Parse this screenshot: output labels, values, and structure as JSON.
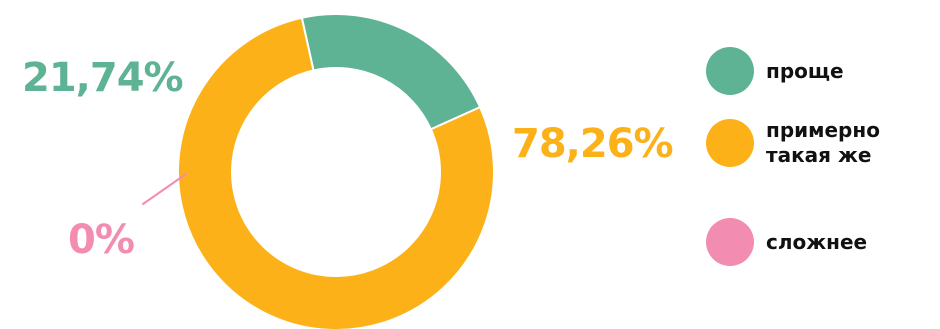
{
  "chart_data": {
    "type": "pie",
    "donut": true,
    "legend": "right",
    "categories": [
      "проще",
      "примерно такая же",
      "сложнее"
    ],
    "values": [
      21.74,
      78.26,
      0
    ],
    "labels": [
      "21,74%",
      "78,26%",
      "0%"
    ],
    "colors": [
      "#5db394",
      "#fbb117",
      "#f28cb1"
    ],
    "legend_items": [
      {
        "label": "проще",
        "color": "#5db394"
      },
      {
        "label": "примерно\nтакая же",
        "color": "#fbb117"
      },
      {
        "label": "сложнее",
        "color": "#f28cb1"
      }
    ]
  }
}
